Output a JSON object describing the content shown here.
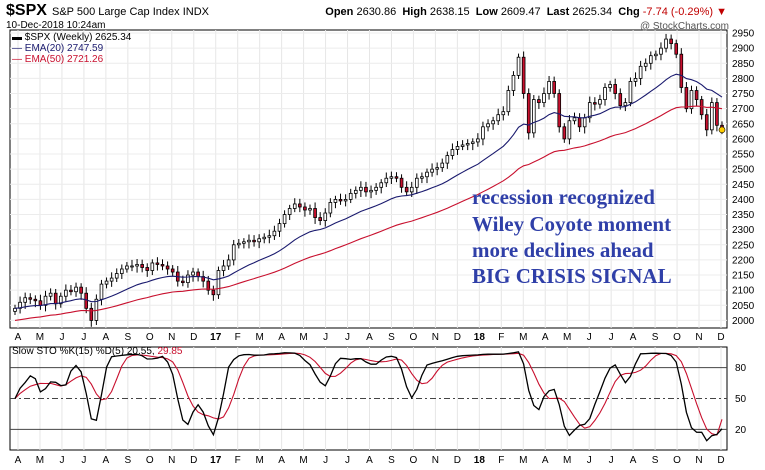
{
  "header": {
    "symbol": "$SPX",
    "name": "S&P 500 Large Cap Index",
    "exchange": "INDX",
    "date": "10-Dec-2018 10:24am",
    "open_label": "Open",
    "open": "2630.86",
    "high_label": "High",
    "high": "2638.15",
    "low_label": "Low",
    "low": "2609.47",
    "last_label": "Last",
    "last": "2625.34",
    "chg_label": "Chg",
    "chg": "-7.74 (-0.29%)",
    "brand": "@ StockCharts.com"
  },
  "legend": {
    "price": "$SPX (Weekly) 2625.34",
    "ema20": "EMA(20) 2747.59",
    "ema50": "EMA(50) 2721.26",
    "sto_label": "Slow STO %K(15) %D(5)",
    "sto_k": "20.55",
    "sto_d": "29.85"
  },
  "annotations": [
    "recession recognized",
    "Wiley Coyote moment",
    "more declines ahead",
    "BIG CRISIS SIGNAL"
  ],
  "colors": {
    "up_candle": "#ffffff",
    "down_candle": "#c8102e",
    "ema20": "#1a1a6e",
    "ema50": "#c8102e",
    "sto_k": "#000000",
    "sto_d": "#c8102e",
    "annotation": "#2f3fa8"
  },
  "chart_data": [
    {
      "type": "candlestick",
      "title": "$SPX S&P 500 Large Cap Index INDX",
      "timeframe": "Weekly",
      "ylim": [
        1975,
        2960
      ],
      "y_ticks": [
        2000,
        2050,
        2100,
        2150,
        2200,
        2250,
        2300,
        2350,
        2400,
        2450,
        2500,
        2550,
        2600,
        2650,
        2700,
        2750,
        2800,
        2850,
        2900,
        2950
      ],
      "x_labels": [
        "A",
        "M",
        "J",
        "J",
        "A",
        "S",
        "O",
        "N",
        "D",
        "17",
        "F",
        "M",
        "A",
        "M",
        "J",
        "J",
        "A",
        "S",
        "O",
        "N",
        "D",
        "18",
        "F",
        "M",
        "A",
        "M",
        "J",
        "J",
        "A",
        "S",
        "O",
        "N",
        "D"
      ],
      "close": [
        2040,
        2060,
        2075,
        2070,
        2065,
        2050,
        2080,
        2090,
        2055,
        2080,
        2100,
        2095,
        2110,
        2090,
        2040,
        2000,
        2070,
        2120,
        2130,
        2140,
        2155,
        2170,
        2180,
        2180,
        2185,
        2175,
        2165,
        2190,
        2185,
        2180,
        2170,
        2160,
        2130,
        2125,
        2150,
        2160,
        2145,
        2130,
        2100,
        2085,
        2165,
        2180,
        2200,
        2250,
        2255,
        2260,
        2265,
        2260,
        2270,
        2275,
        2280,
        2295,
        2320,
        2350,
        2370,
        2385,
        2375,
        2365,
        2370,
        2340,
        2330,
        2355,
        2390,
        2400,
        2395,
        2400,
        2420,
        2430,
        2440,
        2425,
        2430,
        2440,
        2455,
        2470,
        2475,
        2470,
        2440,
        2425,
        2440,
        2470,
        2475,
        2490,
        2500,
        2505,
        2520,
        2545,
        2565,
        2575,
        2580,
        2585,
        2590,
        2600,
        2640,
        2650,
        2660,
        2680,
        2690,
        2760,
        2810,
        2870,
        2750,
        2620,
        2730,
        2720,
        2750,
        2790,
        2750,
        2640,
        2600,
        2660,
        2670,
        2640,
        2670,
        2720,
        2715,
        2730,
        2770,
        2780,
        2750,
        2710,
        2720,
        2790,
        2800,
        2840,
        2850,
        2875,
        2880,
        2900,
        2930,
        2915,
        2880,
        2770,
        2700,
        2760,
        2730,
        2680,
        2630,
        2720,
        2645,
        2630
      ],
      "ema20_last": 2747.59,
      "ema50_last": 2721.26
    },
    {
      "type": "line",
      "title": "Slow STO %K(15) %D(5)",
      "ylim": [
        0,
        100
      ],
      "y_ticks": [
        20,
        50,
        80
      ],
      "series": [
        {
          "name": "%K(15)",
          "last": 20.55
        },
        {
          "name": "%D(5)",
          "last": 29.85
        }
      ]
    }
  ]
}
